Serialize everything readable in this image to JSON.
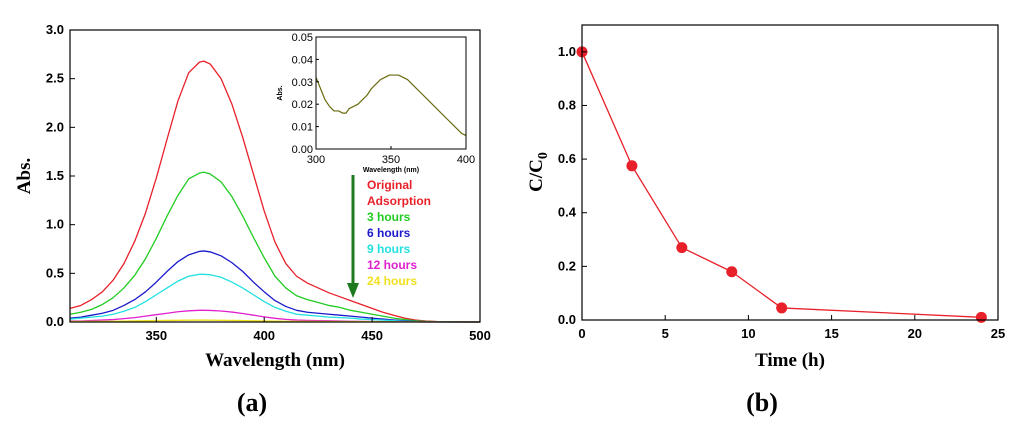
{
  "chart_data": [
    {
      "panel": "(a)",
      "type": "line",
      "xlabel": "Wavelength (nm)",
      "ylabel": "Abs.",
      "xlim": [
        310,
        500
      ],
      "ylim": [
        0,
        3.0
      ],
      "xticks": [
        350,
        400,
        450,
        500
      ],
      "xtick_labels": [
        "350",
        "400",
        "450",
        "500"
      ],
      "yticks": [
        0.0,
        0.5,
        1.0,
        1.5,
        2.0,
        2.5,
        3.0
      ],
      "ytick_labels": [
        "0.0",
        "0.5",
        "1.0",
        "1.5",
        "2.0",
        "2.5",
        "3.0"
      ],
      "legend": [
        "Original",
        "Adsorption",
        "3 hours",
        "6 hours",
        "9 hours",
        "12 hours",
        "24 hours"
      ],
      "legend_colors": [
        "#e8202a",
        "#e8202a",
        "#22cc22",
        "#1a1acc",
        "#22e0e0",
        "#e020d0",
        "#f0e020"
      ],
      "annotation": "arrow indicates decreasing absorbance with irradiation time",
      "series": [
        {
          "name": "Original",
          "color": "#e8202a",
          "x": [
            310,
            315,
            320,
            325,
            330,
            335,
            340,
            345,
            350,
            355,
            360,
            365,
            370,
            372,
            375,
            380,
            385,
            390,
            395,
            400,
            405,
            410,
            415,
            420,
            425,
            430,
            435,
            440,
            445,
            450,
            455,
            460,
            465,
            470,
            475,
            480,
            490,
            500
          ],
          "y": [
            0.14,
            0.17,
            0.23,
            0.31,
            0.43,
            0.6,
            0.83,
            1.12,
            1.48,
            1.88,
            2.27,
            2.56,
            2.67,
            2.68,
            2.65,
            2.5,
            2.24,
            1.9,
            1.52,
            1.14,
            0.82,
            0.6,
            0.47,
            0.4,
            0.35,
            0.3,
            0.26,
            0.22,
            0.18,
            0.14,
            0.1,
            0.07,
            0.04,
            0.02,
            0.01,
            0.005,
            0.002,
            0.0
          ]
        },
        {
          "name": "3 hours",
          "color": "#22cc22",
          "x": [
            310,
            315,
            320,
            325,
            330,
            335,
            340,
            345,
            350,
            355,
            360,
            365,
            370,
            372,
            375,
            380,
            385,
            390,
            395,
            400,
            405,
            410,
            415,
            420,
            425,
            430,
            435,
            440,
            445,
            450,
            455,
            460,
            465,
            470,
            475,
            480,
            490,
            500
          ],
          "y": [
            0.08,
            0.1,
            0.13,
            0.18,
            0.25,
            0.35,
            0.48,
            0.65,
            0.86,
            1.09,
            1.3,
            1.47,
            1.53,
            1.54,
            1.52,
            1.44,
            1.29,
            1.09,
            0.87,
            0.66,
            0.47,
            0.35,
            0.27,
            0.23,
            0.2,
            0.17,
            0.15,
            0.12,
            0.1,
            0.08,
            0.06,
            0.04,
            0.025,
            0.012,
            0.006,
            0.003,
            0.001,
            0.0
          ]
        },
        {
          "name": "6 hours",
          "color": "#1a1acc",
          "x": [
            310,
            315,
            320,
            325,
            330,
            335,
            340,
            345,
            350,
            355,
            360,
            365,
            370,
            372,
            375,
            380,
            385,
            390,
            395,
            400,
            405,
            410,
            415,
            420,
            425,
            430,
            435,
            440,
            445,
            450,
            455,
            460,
            465,
            470,
            475,
            480,
            490,
            500
          ],
          "y": [
            0.04,
            0.05,
            0.07,
            0.09,
            0.12,
            0.17,
            0.23,
            0.31,
            0.41,
            0.52,
            0.62,
            0.69,
            0.725,
            0.73,
            0.72,
            0.68,
            0.61,
            0.52,
            0.41,
            0.31,
            0.22,
            0.16,
            0.12,
            0.1,
            0.09,
            0.08,
            0.07,
            0.06,
            0.05,
            0.04,
            0.03,
            0.02,
            0.012,
            0.006,
            0.003,
            0.001,
            0.0,
            0.0
          ]
        },
        {
          "name": "9 hours",
          "color": "#22e0e0",
          "x": [
            310,
            315,
            320,
            325,
            330,
            335,
            340,
            345,
            350,
            355,
            360,
            365,
            370,
            372,
            375,
            380,
            385,
            390,
            395,
            400,
            405,
            410,
            415,
            420,
            425,
            430,
            435,
            440,
            445,
            450,
            455,
            460,
            465,
            470,
            475,
            480,
            490,
            500
          ],
          "y": [
            0.03,
            0.04,
            0.05,
            0.06,
            0.08,
            0.11,
            0.15,
            0.21,
            0.28,
            0.35,
            0.42,
            0.47,
            0.49,
            0.49,
            0.485,
            0.46,
            0.41,
            0.35,
            0.28,
            0.21,
            0.15,
            0.11,
            0.08,
            0.07,
            0.06,
            0.05,
            0.045,
            0.04,
            0.03,
            0.025,
            0.02,
            0.014,
            0.008,
            0.004,
            0.002,
            0.001,
            0.0,
            0.0
          ]
        },
        {
          "name": "12 hours",
          "color": "#e020d0",
          "x": [
            310,
            315,
            320,
            325,
            330,
            335,
            340,
            345,
            350,
            355,
            360,
            365,
            370,
            372,
            375,
            380,
            385,
            390,
            395,
            400,
            405,
            410,
            415,
            420,
            425,
            430,
            435,
            440,
            445,
            450,
            455,
            460,
            465,
            470,
            475,
            480,
            490,
            500
          ],
          "y": [
            0.01,
            0.01,
            0.015,
            0.02,
            0.025,
            0.035,
            0.045,
            0.06,
            0.075,
            0.09,
            0.105,
            0.115,
            0.12,
            0.12,
            0.119,
            0.113,
            0.102,
            0.087,
            0.07,
            0.053,
            0.038,
            0.027,
            0.02,
            0.016,
            0.014,
            0.012,
            0.01,
            0.008,
            0.006,
            0.005,
            0.004,
            0.003,
            0.002,
            0.001,
            0.0,
            0.0,
            0.0,
            0.0
          ]
        },
        {
          "name": "24 hours",
          "color": "#f0e020",
          "x": [
            310,
            330,
            350,
            370,
            390,
            410,
            430,
            450,
            470,
            500
          ],
          "y": [
            0.005,
            0.008,
            0.015,
            0.02,
            0.015,
            0.008,
            0.005,
            0.003,
            0.001,
            0.0
          ]
        }
      ],
      "inset": {
        "type": "line",
        "xlabel": "Wavelength (nm)",
        "ylabel": "Abs.",
        "xlim": [
          300,
          400
        ],
        "ylim": [
          0,
          0.05
        ],
        "xticks": [
          300,
          350,
          400
        ],
        "xtick_labels": [
          "300",
          "350",
          "400"
        ],
        "yticks": [
          0.0,
          0.01,
          0.02,
          0.03,
          0.04,
          0.05
        ],
        "ytick_labels": [
          "0.00",
          "0.01",
          "0.02",
          "0.03",
          "0.04",
          "0.05"
        ],
        "series": [
          {
            "name": "24 hours (magnified)",
            "color": "#6b6b10",
            "x": [
              300,
              303,
              306,
              309,
              312,
              315,
              318,
              320,
              322,
              325,
              328,
              331,
              334,
              337,
              340,
              343,
              346,
              349,
              352,
              355,
              358,
              361,
              364,
              367,
              370,
              373,
              376,
              379,
              382,
              385,
              388,
              391,
              394,
              397,
              400
            ],
            "y": [
              0.032,
              0.027,
              0.022,
              0.019,
              0.017,
              0.017,
              0.016,
              0.016,
              0.018,
              0.019,
              0.02,
              0.022,
              0.024,
              0.027,
              0.029,
              0.031,
              0.032,
              0.033,
              0.033,
              0.033,
              0.032,
              0.031,
              0.029,
              0.027,
              0.025,
              0.023,
              0.021,
              0.019,
              0.017,
              0.015,
              0.013,
              0.011,
              0.009,
              0.007,
              0.006
            ]
          }
        ]
      }
    },
    {
      "panel": "(b)",
      "type": "line",
      "xlabel": "Time (h)",
      "ylabel": "C/C0",
      "ylabel_main": "C/C",
      "ylabel_sub": "0",
      "xlim": [
        0,
        25
      ],
      "ylim": [
        0,
        1.1
      ],
      "xticks": [
        0,
        5,
        10,
        15,
        20,
        25
      ],
      "xtick_labels": [
        "0",
        "5",
        "10",
        "15",
        "20",
        "25"
      ],
      "yticks": [
        0.0,
        0.2,
        0.4,
        0.6,
        0.8,
        1.0
      ],
      "ytick_labels": [
        "0.0",
        "0.2",
        "0.4",
        "0.6",
        "0.8",
        "1.0"
      ],
      "series": [
        {
          "name": "C/C0",
          "color": "#e8202a",
          "x": [
            0,
            3,
            6,
            9,
            12,
            24
          ],
          "y": [
            1.0,
            0.575,
            0.27,
            0.18,
            0.045,
            0.01
          ]
        }
      ]
    }
  ]
}
